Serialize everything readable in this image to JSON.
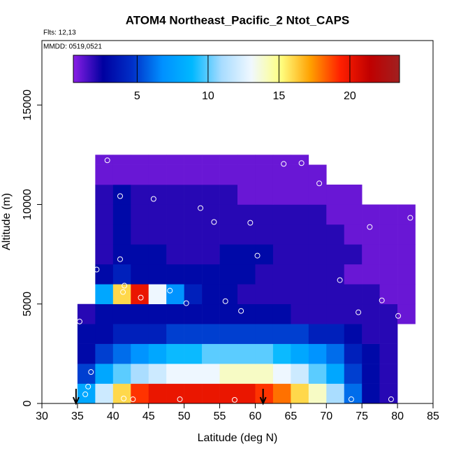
{
  "chart_data": {
    "type": "heatmap",
    "title": "ATOM4 Northeast_Pacific_2 Ntot_CAPS",
    "subtitle": "Flts: 12,13",
    "annotation": "MMDD: 0519,0521",
    "xlabel": "Latitude (deg N)",
    "ylabel": "Altitude (m)",
    "xlim": [
      30,
      85
    ],
    "xticks": [
      30,
      35,
      40,
      45,
      50,
      55,
      60,
      65,
      70,
      75,
      80,
      85
    ],
    "ylim": [
      0,
      18240
    ],
    "yticks": [
      0,
      5000,
      10000,
      15000
    ],
    "clim": [
      0.5,
      23.5
    ],
    "cticks": [
      5,
      10,
      15,
      20
    ],
    "colormap": [
      "#8a1ee6",
      "#0000a0",
      "#0030c8",
      "#0090ff",
      "#00b8ff",
      "#a8dcff",
      "#f0f8ff",
      "#ffff80",
      "#ffa000",
      "#ff2000",
      "#c00000",
      "#a02020"
    ],
    "xbins": [
      35,
      37.5,
      40,
      42.5,
      45,
      47.5,
      50,
      52.5,
      55,
      57.5,
      60,
      62.5,
      65,
      67.5,
      70,
      72.5,
      75,
      77.5,
      80,
      82.5
    ],
    "ybins": [
      0,
      1000,
      2000,
      3000,
      4000,
      5000,
      6000,
      7000,
      8000,
      9000,
      10000,
      11000,
      12000,
      12500
    ],
    "values": [
      [
        8,
        12,
        16,
        19,
        20,
        20,
        20,
        20,
        20,
        20,
        19,
        18,
        16,
        14,
        11,
        6,
        3,
        2,
        null
      ],
      [
        5,
        8,
        10,
        11,
        12,
        13,
        13,
        13,
        14,
        14,
        14,
        13,
        12,
        10,
        8,
        5,
        3,
        2,
        null
      ],
      [
        3,
        5,
        6,
        7,
        8,
        9,
        9,
        10,
        10,
        10,
        10,
        9,
        8,
        7,
        6,
        4,
        3,
        2,
        null
      ],
      [
        3,
        3,
        4,
        4,
        4,
        5,
        5,
        5,
        5,
        5,
        5,
        5,
        5,
        4,
        4,
        3,
        2,
        2,
        null
      ],
      [
        2,
        3,
        3,
        3,
        3,
        3,
        3,
        3,
        3,
        3,
        3,
        3,
        2,
        2,
        2,
        2,
        2,
        2,
        1
      ],
      [
        null,
        8,
        16,
        20,
        13,
        7,
        4,
        3,
        3,
        2,
        2,
        2,
        2,
        2,
        2,
        2,
        2,
        1,
        1
      ],
      [
        null,
        3,
        4,
        3,
        3,
        3,
        3,
        3,
        3,
        3,
        2,
        2,
        2,
        2,
        2,
        1,
        1,
        1,
        1
      ],
      [
        null,
        2,
        3,
        3,
        3,
        2,
        2,
        2,
        3,
        3,
        3,
        2,
        2,
        2,
        2,
        2,
        1,
        1,
        1
      ],
      [
        null,
        2,
        3,
        2,
        2,
        2,
        2,
        2,
        2,
        2,
        2,
        2,
        2,
        2,
        2,
        1,
        1,
        1,
        1
      ],
      [
        null,
        2,
        3,
        2,
        2,
        2,
        2,
        2,
        2,
        2,
        2,
        2,
        2,
        2,
        1,
        1,
        1,
        1,
        1
      ],
      [
        null,
        2,
        3,
        2,
        2,
        2,
        2,
        2,
        2,
        1,
        1,
        1,
        1,
        1,
        1,
        1,
        null,
        null,
        null
      ],
      [
        null,
        1,
        1,
        1,
        1,
        1,
        1,
        1,
        1,
        1,
        1,
        1,
        1,
        1,
        null,
        null,
        null,
        null,
        null
      ],
      [
        null,
        1,
        1,
        1,
        1,
        1,
        1,
        1,
        1,
        1,
        1,
        1,
        1,
        null,
        null,
        null,
        null,
        null,
        null
      ]
    ],
    "points": {
      "color": "#ffffff",
      "x": [
        39.2,
        64.0,
        66.5,
        69.0,
        41.0,
        45.7,
        52.3,
        54.2,
        59.3,
        76.1,
        81.8,
        41.0,
        60.3,
        37.7,
        41.6,
        41.4,
        48.0,
        43.9,
        55.8,
        50.3,
        58.0,
        71.9,
        77.8,
        74.5,
        80.1,
        35.3,
        36.9,
        36.5,
        36.1,
        41.5,
        42.8,
        49.4,
        57.1,
        73.5,
        79.1
      ],
      "y": [
        12220,
        12040,
        12080,
        11060,
        10420,
        10280,
        9820,
        9120,
        9080,
        8870,
        9330,
        7250,
        7430,
        6730,
        5920,
        5600,
        5670,
        5320,
        5140,
        5040,
        4650,
        6200,
        5180,
        4580,
        4400,
        4120,
        1580,
        850,
        460,
        250,
        210,
        210,
        180,
        210,
        210
      ]
    },
    "arrows": [
      34.8,
      61.1
    ]
  }
}
